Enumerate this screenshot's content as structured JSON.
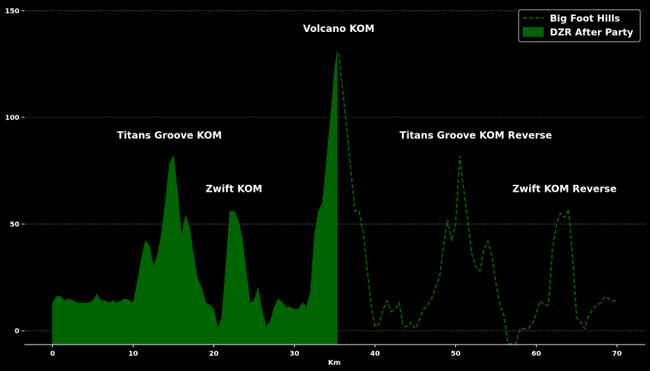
{
  "chart_data": {
    "type": "area",
    "xlabel": "Km",
    "ylabel": "",
    "title": "",
    "xlim": [
      -3.5,
      73.5
    ],
    "ylim": [
      -6.5,
      155
    ],
    "x_ticks": [
      0,
      10,
      20,
      30,
      40,
      50,
      60,
      70
    ],
    "y_ticks": [
      0,
      50,
      100,
      150
    ],
    "grid": "horizontal dotted",
    "legend_position": "top-right",
    "colors": {
      "background": "#000000",
      "fill": "#006400",
      "line": "#006400",
      "text": "#ffffff"
    },
    "series": [
      {
        "name": "DZR After Party",
        "style": "filled-area",
        "x": [
          0,
          0.5,
          1,
          1.5,
          2,
          2.5,
          3,
          3.5,
          4,
          4.5,
          5,
          5.5,
          6,
          6.5,
          7,
          7.5,
          8,
          8.5,
          9,
          9.5,
          10,
          10.5,
          11,
          11.5,
          12,
          12.5,
          13,
          13.5,
          14,
          14.5,
          15,
          15.5,
          16,
          16.5,
          17,
          17.5,
          18,
          18.5,
          19,
          19.5,
          20,
          20.5,
          21,
          21.5,
          22,
          22.5,
          23,
          23.5,
          24,
          24.5,
          25,
          25.5,
          26,
          26.5,
          27,
          27.5,
          28,
          28.5,
          29,
          29.5,
          30,
          30.5,
          31,
          31.5,
          32,
          32.5,
          33,
          33.5,
          34,
          34.5,
          35,
          35.3
        ],
        "values": [
          13,
          16,
          16,
          14,
          15,
          14,
          13,
          13,
          13,
          13,
          14,
          17,
          14,
          14,
          13,
          14,
          13,
          14,
          15,
          14,
          13,
          22,
          33,
          42,
          40,
          30,
          35,
          45,
          60,
          78,
          82,
          65,
          44,
          54,
          48,
          35,
          24,
          20,
          13,
          12,
          10,
          1,
          6,
          30,
          56,
          56,
          52,
          44,
          28,
          13,
          14,
          20,
          9,
          2,
          4,
          11,
          15,
          13,
          11,
          11,
          10,
          10,
          13,
          11,
          18,
          45,
          56,
          60,
          80,
          100,
          123,
          131
        ]
      },
      {
        "name": "Big Foot Hills",
        "style": "dashed-line",
        "x": [
          35.5,
          36,
          36.5,
          37,
          37.5,
          38,
          38.5,
          39,
          39.5,
          40,
          40.5,
          41,
          41.5,
          42,
          42.5,
          43,
          43.5,
          44,
          44.5,
          45,
          45.5,
          46,
          46.5,
          47,
          47.5,
          48,
          48.5,
          49,
          49.5,
          50,
          50.5,
          51,
          51.5,
          52,
          52.5,
          53,
          53.5,
          54,
          54.5,
          55,
          55.5,
          56,
          56.5,
          57,
          57.5,
          58,
          58.5,
          59,
          59.5,
          60,
          60.5,
          61,
          61.5,
          62,
          62.5,
          63,
          63.5,
          64,
          64.5,
          65,
          65.5,
          66,
          66.5,
          67,
          67.5,
          68,
          68.5,
          69,
          69.5,
          70
        ],
        "values": [
          130,
          112,
          95,
          75,
          56,
          56,
          47,
          30,
          12,
          2,
          3,
          10,
          14,
          9,
          10,
          13,
          2,
          2,
          4,
          1,
          5,
          10,
          12,
          15,
          20,
          25,
          40,
          52,
          42,
          50,
          82,
          66,
          52,
          36,
          30,
          28,
          38,
          42,
          35,
          22,
          12,
          7,
          -6,
          -6,
          -6,
          1,
          1,
          1,
          3,
          8,
          14,
          12,
          12,
          38,
          50,
          55,
          53,
          57,
          35,
          6,
          4,
          1,
          7,
          10,
          12,
          13,
          16,
          15,
          14,
          14
        ]
      }
    ],
    "annotations": [
      {
        "text": "Titans Groove KOM",
        "x": 14.5,
        "y": 90
      },
      {
        "text": "Zwift KOM",
        "x": 22.5,
        "y": 65
      },
      {
        "text": "Volcano KOM",
        "x": 35.5,
        "y": 140
      },
      {
        "text": "Titans Groove KOM Reverse",
        "x": 52.5,
        "y": 90
      },
      {
        "text": "Zwift KOM Reverse",
        "x": 63.5,
        "y": 65
      }
    ]
  }
}
